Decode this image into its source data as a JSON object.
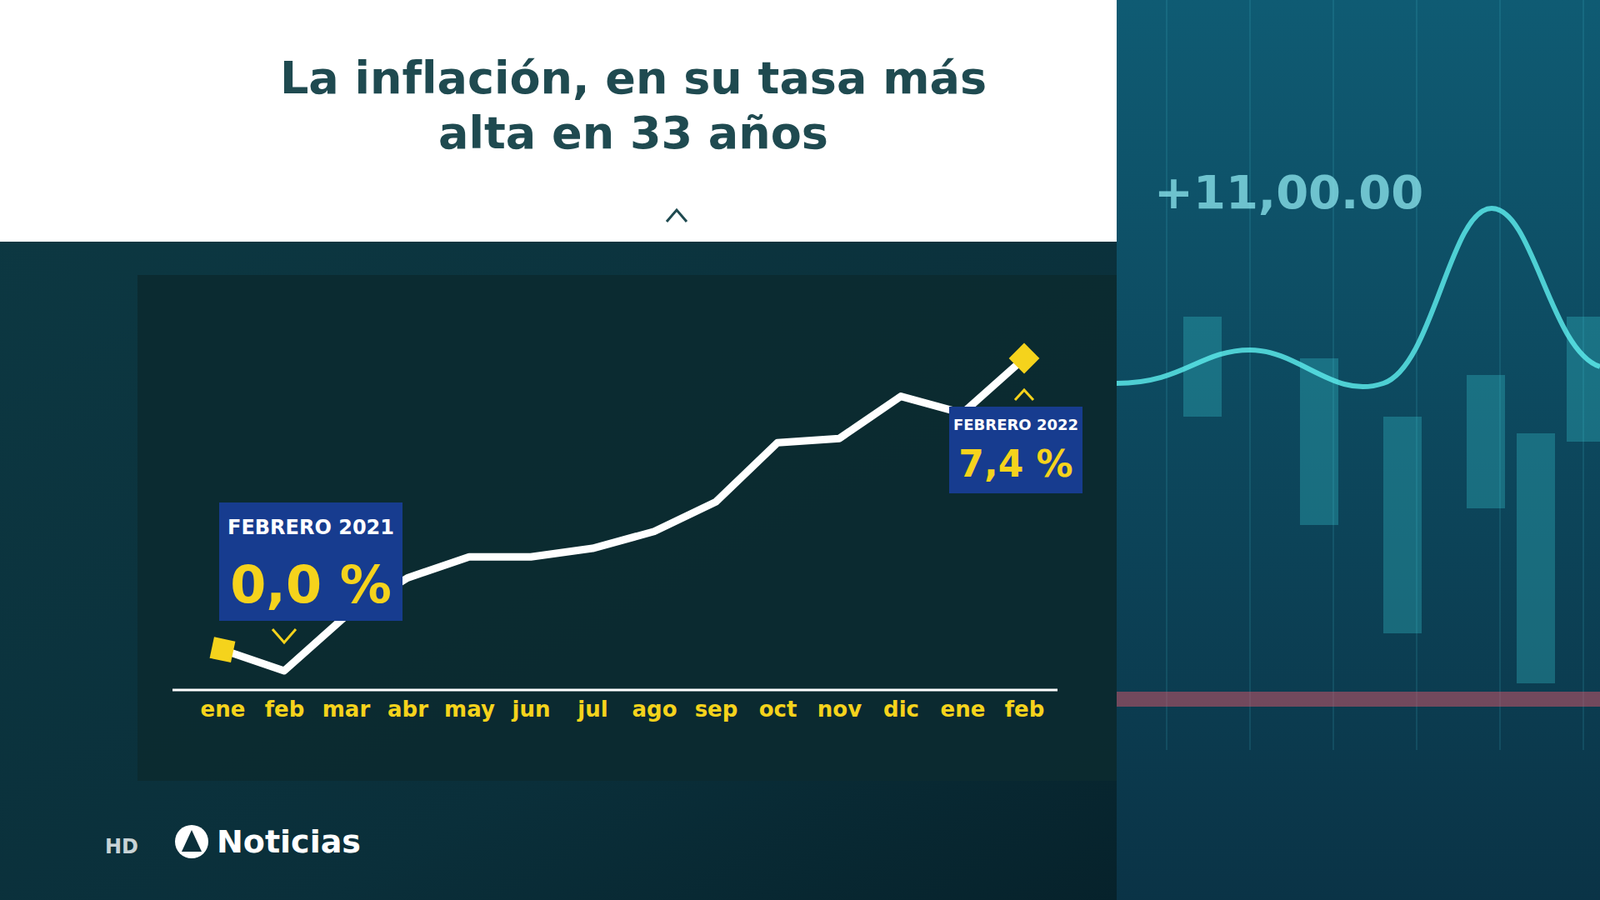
{
  "chart_data": {
    "type": "line",
    "title": "La inflación, en su tasa más alta en 33 años",
    "categories": [
      "ene",
      "feb",
      "mar",
      "abr",
      "may",
      "jun",
      "jul",
      "ago",
      "sep",
      "oct",
      "nov",
      "dic",
      "ene",
      "feb"
    ],
    "values": [
      0.5,
      0.0,
      1.3,
      2.2,
      2.7,
      2.7,
      2.9,
      3.3,
      4.0,
      5.4,
      5.5,
      6.5,
      6.1,
      7.4
    ],
    "color": "#ffffff",
    "marker": "square",
    "data_labels": true,
    "value_labels": [
      null,
      "0,0 %",
      null,
      null,
      null,
      null,
      null,
      null,
      null,
      null,
      null,
      null,
      null,
      "7,4 %"
    ],
    "label_titles": [
      null,
      "FEBRERO 2021",
      null,
      null,
      null,
      null,
      null,
      null,
      null,
      null,
      null,
      null,
      null,
      "FEBRERO 2022"
    ],
    "tick_labels": "x",
    "grid": false,
    "background_text": "+11,00.00",
    "footer": [
      "HD",
      "Noticias"
    ]
  }
}
